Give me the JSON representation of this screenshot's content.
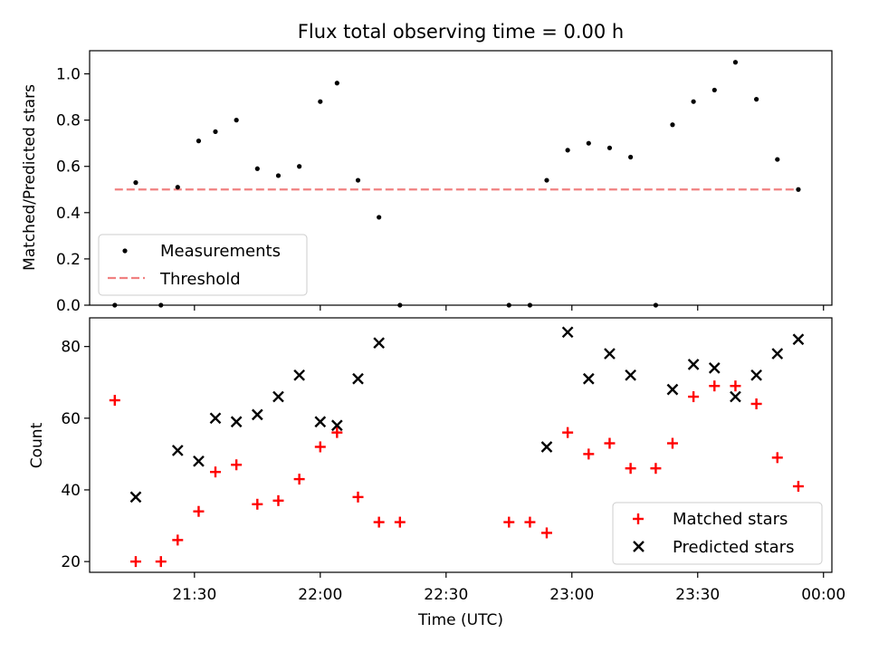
{
  "chart_data": [
    {
      "type": "scatter",
      "title": "Flux total observing time = 0.00 h",
      "xlabel": "",
      "ylabel": "Matched/Predicted stars",
      "xlim": [
        "21:05",
        "00:02"
      ],
      "ylim": [
        0,
        1.1
      ],
      "y_ticks": [
        "0.0",
        "0.2",
        "0.4",
        "0.6",
        "0.8",
        "1.0"
      ],
      "grid": false,
      "legend_position": "lower-left",
      "series": [
        {
          "name": "Measurements",
          "marker": "dot",
          "color": "#000000",
          "points": [
            {
              "x": "21:11",
              "y": 0.0
            },
            {
              "x": "21:16",
              "y": 0.53
            },
            {
              "x": "21:22",
              "y": 0.0
            },
            {
              "x": "21:26",
              "y": 0.51
            },
            {
              "x": "21:31",
              "y": 0.71
            },
            {
              "x": "21:35",
              "y": 0.75
            },
            {
              "x": "21:40",
              "y": 0.8
            },
            {
              "x": "21:45",
              "y": 0.59
            },
            {
              "x": "21:50",
              "y": 0.56
            },
            {
              "x": "21:55",
              "y": 0.6
            },
            {
              "x": "22:00",
              "y": 0.88
            },
            {
              "x": "22:04",
              "y": 0.96
            },
            {
              "x": "22:09",
              "y": 0.54
            },
            {
              "x": "22:14",
              "y": 0.38
            },
            {
              "x": "22:19",
              "y": 0.0
            },
            {
              "x": "22:45",
              "y": 0.0
            },
            {
              "x": "22:50",
              "y": 0.0
            },
            {
              "x": "22:54",
              "y": 0.54
            },
            {
              "x": "22:59",
              "y": 0.67
            },
            {
              "x": "23:04",
              "y": 0.7
            },
            {
              "x": "23:09",
              "y": 0.68
            },
            {
              "x": "23:14",
              "y": 0.64
            },
            {
              "x": "23:20",
              "y": 0.0
            },
            {
              "x": "23:24",
              "y": 0.78
            },
            {
              "x": "23:29",
              "y": 0.88
            },
            {
              "x": "23:34",
              "y": 0.93
            },
            {
              "x": "23:39",
              "y": 1.05
            },
            {
              "x": "23:44",
              "y": 0.89
            },
            {
              "x": "23:49",
              "y": 0.63
            },
            {
              "x": "23:54",
              "y": 0.5
            }
          ]
        },
        {
          "name": "Threshold",
          "marker": "dashed-line",
          "color": "#f08080",
          "points": [
            {
              "x": "21:11",
              "y": 0.5
            },
            {
              "x": "23:54",
              "y": 0.5
            }
          ]
        }
      ]
    },
    {
      "type": "scatter",
      "title": "",
      "xlabel": "Time (UTC)",
      "ylabel": "Count",
      "xlim": [
        "21:05",
        "00:02"
      ],
      "ylim": [
        17,
        88
      ],
      "x_ticks": [
        "21:30",
        "22:00",
        "22:30",
        "23:00",
        "23:30",
        "00:00"
      ],
      "y_ticks": [
        "20",
        "40",
        "60",
        "80"
      ],
      "grid": false,
      "legend_position": "lower-right",
      "series": [
        {
          "name": "Matched stars",
          "marker": "plus",
          "color": "#ff0000",
          "points": [
            {
              "x": "21:11",
              "y": 65
            },
            {
              "x": "21:16",
              "y": 20
            },
            {
              "x": "21:22",
              "y": 20
            },
            {
              "x": "21:26",
              "y": 26
            },
            {
              "x": "21:31",
              "y": 34
            },
            {
              "x": "21:35",
              "y": 45
            },
            {
              "x": "21:40",
              "y": 47
            },
            {
              "x": "21:45",
              "y": 36
            },
            {
              "x": "21:50",
              "y": 37
            },
            {
              "x": "21:55",
              "y": 43
            },
            {
              "x": "22:00",
              "y": 52
            },
            {
              "x": "22:04",
              "y": 56
            },
            {
              "x": "22:09",
              "y": 38
            },
            {
              "x": "22:14",
              "y": 31
            },
            {
              "x": "22:19",
              "y": 31
            },
            {
              "x": "22:45",
              "y": 31
            },
            {
              "x": "22:50",
              "y": 31
            },
            {
              "x": "22:54",
              "y": 28
            },
            {
              "x": "22:59",
              "y": 56
            },
            {
              "x": "23:04",
              "y": 50
            },
            {
              "x": "23:09",
              "y": 53
            },
            {
              "x": "23:14",
              "y": 46
            },
            {
              "x": "23:20",
              "y": 46
            },
            {
              "x": "23:24",
              "y": 53
            },
            {
              "x": "23:29",
              "y": 66
            },
            {
              "x": "23:34",
              "y": 69
            },
            {
              "x": "23:39",
              "y": 69
            },
            {
              "x": "23:44",
              "y": 64
            },
            {
              "x": "23:49",
              "y": 49
            },
            {
              "x": "23:54",
              "y": 41
            }
          ]
        },
        {
          "name": "Predicted stars",
          "marker": "x",
          "color": "#000000",
          "points": [
            {
              "x": "21:16",
              "y": 38
            },
            {
              "x": "21:26",
              "y": 51
            },
            {
              "x": "21:31",
              "y": 48
            },
            {
              "x": "21:35",
              "y": 60
            },
            {
              "x": "21:40",
              "y": 59
            },
            {
              "x": "21:45",
              "y": 61
            },
            {
              "x": "21:50",
              "y": 66
            },
            {
              "x": "21:55",
              "y": 72
            },
            {
              "x": "22:00",
              "y": 59
            },
            {
              "x": "22:04",
              "y": 58
            },
            {
              "x": "22:09",
              "y": 71
            },
            {
              "x": "22:14",
              "y": 81
            },
            {
              "x": "22:54",
              "y": 52
            },
            {
              "x": "22:59",
              "y": 84
            },
            {
              "x": "23:04",
              "y": 71
            },
            {
              "x": "23:09",
              "y": 78
            },
            {
              "x": "23:14",
              "y": 72
            },
            {
              "x": "23:24",
              "y": 68
            },
            {
              "x": "23:29",
              "y": 75
            },
            {
              "x": "23:34",
              "y": 74
            },
            {
              "x": "23:39",
              "y": 66
            },
            {
              "x": "23:44",
              "y": 72
            },
            {
              "x": "23:49",
              "y": 78
            },
            {
              "x": "23:54",
              "y": 82
            }
          ]
        }
      ]
    }
  ]
}
